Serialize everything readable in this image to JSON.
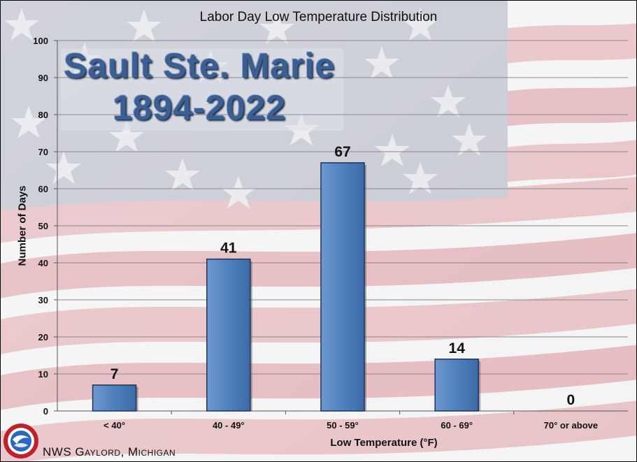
{
  "chart_data": {
    "type": "bar",
    "title": "Labor Day Low Temperature Distribution",
    "city": "Sault Ste. Marie",
    "years": "1894-2022",
    "xlabel": "Low Temperature (°F)",
    "ylabel": "Number of Days",
    "categories": [
      "< 40°",
      "40 - 49°",
      "50 - 59°",
      "60 - 69°",
      "70° or above"
    ],
    "values": [
      7,
      41,
      67,
      14,
      0
    ],
    "ylim": [
      0,
      100
    ],
    "yticks": [
      0,
      10,
      20,
      30,
      40,
      50,
      60,
      70,
      80,
      90,
      100
    ],
    "grid": true,
    "bar_color": "#4f81bd",
    "background": "American flag"
  },
  "footer": {
    "text": "NWS Gaylord, Michigan"
  }
}
